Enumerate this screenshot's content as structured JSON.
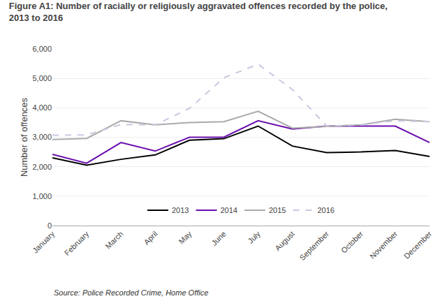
{
  "chart_data": {
    "type": "line",
    "title": "Figure A1: Number of racially or religiously aggravated offences recorded by the police, 2013 to 2016",
    "annotations": [
      "Source: Police Recorded Crime, Home Office"
    ],
    "ylabel": "Number of offences",
    "categories": [
      "January",
      "February",
      "March",
      "April",
      "May",
      "June",
      "July",
      "August",
      "September",
      "October",
      "November",
      "December"
    ],
    "series": [
      {
        "name": "2013",
        "color": "#000000",
        "line_style": "solid",
        "values": [
          2300,
          2050,
          2250,
          2400,
          2900,
          2950,
          3380,
          2700,
          2480,
          2500,
          2550,
          2350
        ]
      },
      {
        "name": "2014",
        "color": "#6A0DAD",
        "line_style": "solid",
        "values": [
          2420,
          2120,
          2820,
          2530,
          3000,
          3000,
          3560,
          3280,
          3380,
          3380,
          3380,
          2820
        ]
      },
      {
        "name": "2015",
        "color": "#aaaaaa",
        "line_style": "solid",
        "values": [
          2920,
          2960,
          3560,
          3420,
          3500,
          3530,
          3880,
          3310,
          3370,
          3420,
          3610,
          3530
        ]
      },
      {
        "name": "2016",
        "color": "#c8c8e0",
        "line_style": "dashed",
        "values": [
          3070,
          3080,
          3430,
          3420,
          3980,
          5020,
          5480,
          4620,
          3380,
          3420,
          3560,
          3530
        ]
      }
    ],
    "ylim": [
      0,
      6000
    ],
    "yticks": [
      0,
      {
        "value": 1000,
        "label": "1,000"
      },
      {
        "value": 2000,
        "label": "2,000"
      },
      {
        "value": 3000,
        "label": "3,000"
      },
      {
        "value": 4000,
        "label": "4,000"
      },
      {
        "value": 5000,
        "label": "5,000"
      },
      {
        "value": 6000,
        "label": "6,000"
      }
    ],
    "grid": true,
    "legend": "lower center"
  }
}
